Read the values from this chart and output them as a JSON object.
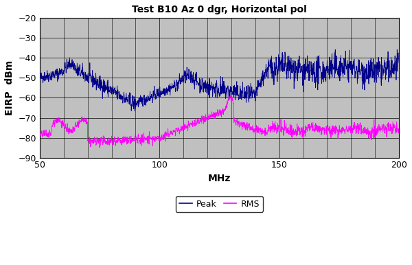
{
  "title": "Test B10 Az 0 dgr, Horizontal pol",
  "xlabel": "MHz",
  "ylabel": "EIRP  dBm",
  "xlim": [
    50,
    200
  ],
  "ylim": [
    -90,
    -20
  ],
  "yticks": [
    -90,
    -80,
    -70,
    -60,
    -50,
    -40,
    -30,
    -20
  ],
  "xticks": [
    50,
    100,
    150,
    200
  ],
  "peak_color": "#00008B",
  "rms_color": "#FF00FF",
  "bg_color": "#C0C0C0",
  "grid_color": "#000000",
  "title_fontsize": 10,
  "axis_label_fontsize": 10,
  "tick_fontsize": 9,
  "figsize": [
    6.0,
    3.86
  ],
  "dpi": 100
}
